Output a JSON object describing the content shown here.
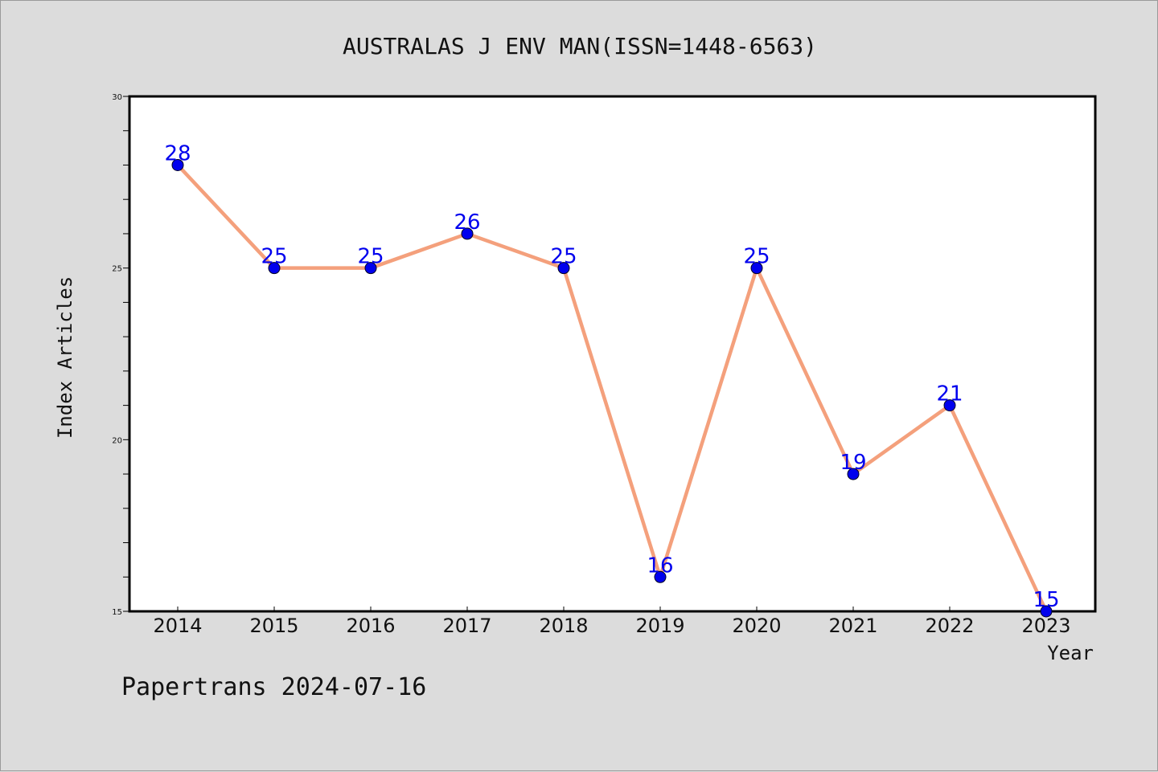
{
  "chart_data": {
    "type": "line",
    "title": "AUSTRALAS J ENV MAN(ISSN=1448-6563)",
    "xlabel": "Year",
    "ylabel": "Index Articles",
    "categories": [
      "2014",
      "2015",
      "2016",
      "2017",
      "2018",
      "2019",
      "2020",
      "2021",
      "2022",
      "2023"
    ],
    "values": [
      28,
      25,
      25,
      26,
      25,
      16,
      25,
      19,
      21,
      15
    ],
    "data_labels": [
      "28",
      "25",
      "25",
      "26",
      "25",
      "16",
      "25",
      "19",
      "21",
      "15"
    ],
    "ylim": [
      15,
      30
    ],
    "yticks": [
      "15",
      "20",
      "25",
      "30"
    ],
    "grid": false,
    "legend": "none",
    "line_color": "#f4a07c",
    "marker_color": "#0000ee",
    "label_color": "#0000ee",
    "background_color": "#dcdcdc",
    "plot_background_color": "#ffffff"
  },
  "footer": {
    "text": "Papertrans 2024-07-16"
  }
}
